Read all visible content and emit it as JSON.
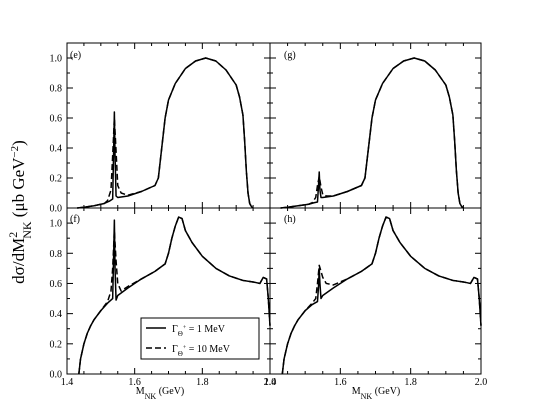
{
  "ylabel": {
    "main": "dσ/dM",
    "sup": "2",
    "sub": "NK",
    "units": " (μb GeV",
    "units_sup": "−2",
    "units_close": ")"
  },
  "xlabel": {
    "main": "M",
    "sub": "NK",
    "units": " (GeV)"
  },
  "legend": [
    {
      "prefix": "Γ",
      "sub": "Θ",
      "sup": "+",
      "value": " = 1 MeV",
      "dash": "solid"
    },
    {
      "prefix": "Γ",
      "sub": "Θ",
      "sup": "+",
      "value": " = 10 MeV",
      "dash": "dashed"
    }
  ],
  "x_ticks": [
    "1.4",
    "1.6",
    "1.8",
    "2.0"
  ],
  "y_ticks_top": [
    "0.0",
    "0.2",
    "0.4",
    "0.6",
    "0.8",
    "1.0"
  ],
  "y_ticks_bottom": [
    "0.0",
    "0.2",
    "0.4",
    "0.6",
    "0.8",
    "1.0"
  ],
  "chart_data": [
    {
      "type": "line",
      "panel": "(e)",
      "xlim": [
        1.4,
        2.0
      ],
      "ylim": [
        0,
        1.1
      ],
      "series": [
        {
          "style": "solid",
          "x": [
            1.43,
            1.45,
            1.48,
            1.51,
            1.525,
            1.535,
            1.538,
            1.54,
            1.542,
            1.545,
            1.55,
            1.58,
            1.62,
            1.66,
            1.67,
            1.68,
            1.69,
            1.7,
            1.72,
            1.75,
            1.78,
            1.81,
            1.84,
            1.87,
            1.9,
            1.91,
            1.92,
            1.925,
            1.93,
            1.935,
            1.94,
            1.945,
            1.95
          ],
          "y": [
            0,
            0.005,
            0.015,
            0.03,
            0.045,
            0.06,
            0.4,
            0.64,
            0.35,
            0.08,
            0.07,
            0.08,
            0.11,
            0.15,
            0.2,
            0.4,
            0.6,
            0.72,
            0.83,
            0.93,
            0.98,
            1.0,
            0.98,
            0.92,
            0.82,
            0.74,
            0.62,
            0.45,
            0.25,
            0.1,
            0.03,
            0.01,
            0
          ]
        },
        {
          "style": "dashed",
          "x": [
            1.43,
            1.45,
            1.48,
            1.51,
            1.52,
            1.53,
            1.535,
            1.54,
            1.545,
            1.55,
            1.56,
            1.58,
            1.62,
            1.66,
            1.67,
            1.68,
            1.69,
            1.7,
            1.72,
            1.75,
            1.78,
            1.81,
            1.84,
            1.87,
            1.9,
            1.91,
            1.92,
            1.925,
            1.93,
            1.935,
            1.94,
            1.945,
            1.95
          ],
          "y": [
            0,
            0.005,
            0.015,
            0.03,
            0.05,
            0.12,
            0.35,
            0.6,
            0.38,
            0.15,
            0.1,
            0.085,
            0.11,
            0.15,
            0.2,
            0.4,
            0.6,
            0.72,
            0.83,
            0.93,
            0.98,
            1.0,
            0.98,
            0.92,
            0.82,
            0.74,
            0.62,
            0.45,
            0.25,
            0.1,
            0.03,
            0.01,
            0
          ]
        }
      ]
    },
    {
      "type": "line",
      "panel": "(g)",
      "xlim": [
        1.4,
        2.0
      ],
      "ylim": [
        0,
        1.1
      ],
      "series": [
        {
          "style": "solid",
          "x": [
            1.43,
            1.45,
            1.48,
            1.51,
            1.525,
            1.535,
            1.538,
            1.54,
            1.542,
            1.545,
            1.55,
            1.58,
            1.62,
            1.66,
            1.67,
            1.68,
            1.69,
            1.7,
            1.72,
            1.75,
            1.78,
            1.81,
            1.84,
            1.87,
            1.9,
            1.91,
            1.92,
            1.925,
            1.93,
            1.935,
            1.94,
            1.945,
            1.95
          ],
          "y": [
            0,
            0.005,
            0.015,
            0.025,
            0.035,
            0.04,
            0.15,
            0.24,
            0.12,
            0.07,
            0.07,
            0.08,
            0.11,
            0.15,
            0.2,
            0.4,
            0.6,
            0.72,
            0.83,
            0.93,
            0.98,
            1.0,
            0.98,
            0.92,
            0.82,
            0.74,
            0.62,
            0.45,
            0.25,
            0.1,
            0.03,
            0.01,
            0
          ]
        },
        {
          "style": "dashed",
          "x": [
            1.43,
            1.45,
            1.48,
            1.51,
            1.52,
            1.53,
            1.535,
            1.54,
            1.545,
            1.55,
            1.56,
            1.58,
            1.62,
            1.66,
            1.67,
            1.68,
            1.69,
            1.7,
            1.72,
            1.75,
            1.78,
            1.81,
            1.84,
            1.87,
            1.9,
            1.91,
            1.92,
            1.925,
            1.93,
            1.935,
            1.94,
            1.945,
            1.95
          ],
          "y": [
            0,
            0.005,
            0.015,
            0.025,
            0.035,
            0.07,
            0.15,
            0.21,
            0.14,
            0.09,
            0.08,
            0.08,
            0.11,
            0.15,
            0.2,
            0.4,
            0.6,
            0.72,
            0.83,
            0.93,
            0.98,
            1.0,
            0.98,
            0.92,
            0.82,
            0.74,
            0.62,
            0.45,
            0.25,
            0.1,
            0.03,
            0.01,
            0
          ]
        }
      ]
    },
    {
      "type": "line",
      "panel": "(f)",
      "xlim": [
        1.4,
        2.0
      ],
      "ylim": [
        0,
        1.1
      ],
      "series": [
        {
          "style": "solid",
          "x": [
            1.435,
            1.44,
            1.45,
            1.46,
            1.47,
            1.48,
            1.5,
            1.52,
            1.535,
            1.538,
            1.54,
            1.542,
            1.545,
            1.55,
            1.58,
            1.62,
            1.66,
            1.69,
            1.7,
            1.71,
            1.72,
            1.73,
            1.74,
            1.75,
            1.77,
            1.8,
            1.84,
            1.88,
            1.92,
            1.95,
            1.97,
            1.98,
            1.99,
            1.995,
            2.0
          ],
          "y": [
            0,
            0.1,
            0.2,
            0.27,
            0.32,
            0.36,
            0.42,
            0.47,
            0.5,
            0.8,
            1.02,
            0.7,
            0.49,
            0.52,
            0.57,
            0.63,
            0.68,
            0.73,
            0.8,
            0.9,
            0.98,
            1.04,
            1.03,
            0.95,
            0.87,
            0.78,
            0.7,
            0.65,
            0.62,
            0.61,
            0.6,
            0.64,
            0.63,
            0.5,
            0.32
          ]
        },
        {
          "style": "dashed",
          "x": [
            1.435,
            1.44,
            1.45,
            1.46,
            1.47,
            1.48,
            1.5,
            1.52,
            1.53,
            1.535,
            1.54,
            1.545,
            1.55,
            1.56,
            1.58,
            1.62,
            1.66,
            1.69,
            1.7,
            1.71,
            1.72,
            1.73,
            1.74,
            1.75,
            1.77,
            1.8,
            1.84,
            1.88,
            1.92,
            1.95,
            1.97,
            1.98,
            1.99,
            1.995,
            2.0
          ],
          "y": [
            0,
            0.1,
            0.2,
            0.27,
            0.32,
            0.36,
            0.42,
            0.48,
            0.55,
            0.7,
            0.95,
            0.75,
            0.6,
            0.55,
            0.58,
            0.63,
            0.68,
            0.73,
            0.8,
            0.9,
            0.98,
            1.04,
            1.03,
            0.95,
            0.87,
            0.78,
            0.7,
            0.65,
            0.62,
            0.61,
            0.6,
            0.64,
            0.63,
            0.5,
            0.32
          ]
        }
      ]
    },
    {
      "type": "line",
      "panel": "(h)",
      "xlim": [
        1.4,
        2.0
      ],
      "ylim": [
        0,
        1.1
      ],
      "series": [
        {
          "style": "solid",
          "x": [
            1.435,
            1.44,
            1.45,
            1.46,
            1.47,
            1.48,
            1.5,
            1.52,
            1.535,
            1.538,
            1.54,
            1.542,
            1.545,
            1.55,
            1.58,
            1.62,
            1.66,
            1.69,
            1.7,
            1.71,
            1.72,
            1.73,
            1.74,
            1.75,
            1.77,
            1.8,
            1.84,
            1.88,
            1.92,
            1.95,
            1.97,
            1.98,
            1.99,
            1.995,
            2.0
          ],
          "y": [
            0,
            0.1,
            0.2,
            0.27,
            0.32,
            0.36,
            0.42,
            0.46,
            0.48,
            0.58,
            0.7,
            0.6,
            0.5,
            0.52,
            0.57,
            0.63,
            0.68,
            0.73,
            0.8,
            0.9,
            0.98,
            1.04,
            1.03,
            0.95,
            0.87,
            0.78,
            0.7,
            0.65,
            0.62,
            0.61,
            0.6,
            0.64,
            0.63,
            0.5,
            0.32
          ]
        },
        {
          "style": "dashed",
          "x": [
            1.435,
            1.44,
            1.45,
            1.46,
            1.47,
            1.48,
            1.5,
            1.52,
            1.53,
            1.535,
            1.54,
            1.545,
            1.55,
            1.56,
            1.58,
            1.62,
            1.66,
            1.69,
            1.7,
            1.71,
            1.72,
            1.73,
            1.74,
            1.75,
            1.77,
            1.8,
            1.84,
            1.88,
            1.92,
            1.95,
            1.97,
            1.98,
            1.99,
            1.995,
            2.0
          ],
          "y": [
            0,
            0.1,
            0.2,
            0.27,
            0.32,
            0.36,
            0.42,
            0.47,
            0.5,
            0.6,
            0.72,
            0.68,
            0.64,
            0.6,
            0.59,
            0.63,
            0.68,
            0.73,
            0.8,
            0.9,
            0.98,
            1.04,
            1.03,
            0.95,
            0.87,
            0.78,
            0.7,
            0.65,
            0.62,
            0.61,
            0.6,
            0.64,
            0.63,
            0.5,
            0.32
          ]
        }
      ]
    }
  ]
}
